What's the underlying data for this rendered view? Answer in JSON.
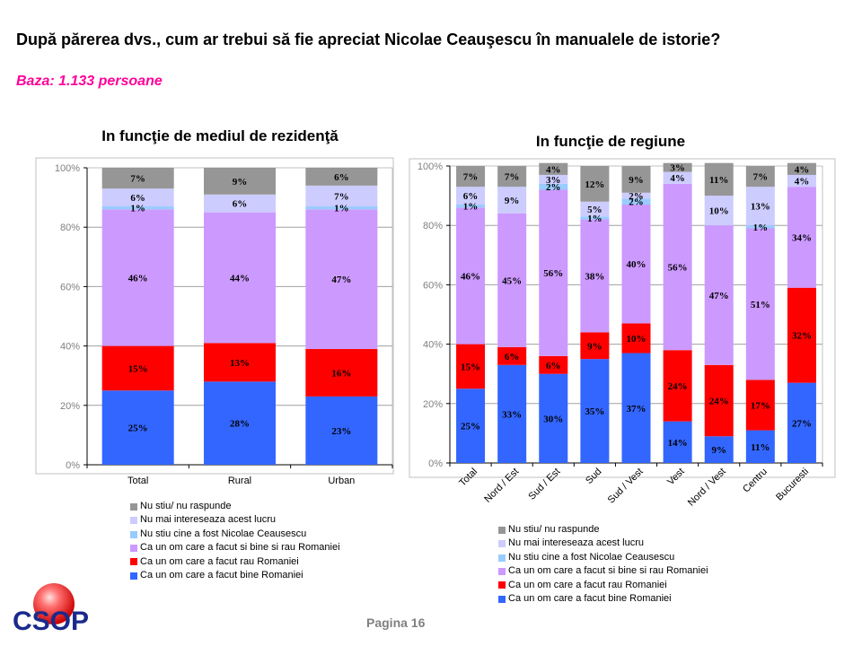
{
  "page": {
    "title": "După părerea dvs., cum ar trebui să fie apreciat Nicolae Ceauşescu în manualele de istorie?",
    "base": "Baza: 1.133 persoane",
    "page_label": "Pagina 16",
    "logo_text": "CSOP"
  },
  "legend": [
    {
      "label": "Nu stiu/ nu raspunde",
      "color": "#969696"
    },
    {
      "label": "Nu mai intereseaza acest lucru",
      "color": "#ccccff"
    },
    {
      "label": "Nu stiu cine a fost Nicolae Ceausescu",
      "color": "#99ccff"
    },
    {
      "label": "Ca un om care a facut si bine si rau Romaniei",
      "color": "#cc99ff"
    },
    {
      "label": "Ca un om care a facut rau Romaniei",
      "color": "#ff0000"
    },
    {
      "label": "Ca un om care a facut bine Romaniei",
      "color": "#3366ff"
    }
  ],
  "chart_data": [
    {
      "type": "bar",
      "stacked": true,
      "title": "In funcţie de mediul de rezidenţă",
      "xlabel": "",
      "ylabel": "",
      "ylim": [
        0,
        100
      ],
      "yticks": [
        "0%",
        "20%",
        "40%",
        "60%",
        "80%",
        "100%"
      ],
      "grid": true,
      "legend_position": "bottom",
      "categories": [
        "Total",
        "Rural",
        "Urban"
      ],
      "series": [
        {
          "name": "Ca un om care a facut bine Romaniei",
          "color": "#3366ff",
          "values": [
            25,
            28,
            23
          ]
        },
        {
          "name": "Ca un om care a facut rau Romaniei",
          "color": "#ff0000",
          "values": [
            15,
            13,
            16
          ]
        },
        {
          "name": "Ca un om care a facut si bine si rau Romaniei",
          "color": "#cc99ff",
          "values": [
            46,
            44,
            47
          ]
        },
        {
          "name": "Nu stiu cine a fost Nicolae Ceausescu",
          "color": "#99ccff",
          "values": [
            1,
            0,
            1
          ]
        },
        {
          "name": "Nu mai intereseaza acest lucru",
          "color": "#ccccff",
          "values": [
            6,
            6,
            7
          ]
        },
        {
          "name": "Nu stiu/ nu raspunde",
          "color": "#969696",
          "values": [
            7,
            9,
            6
          ]
        }
      ]
    },
    {
      "type": "bar",
      "stacked": true,
      "title": "In funcţie de regiune",
      "xlabel": "",
      "ylabel": "",
      "ylim": [
        0,
        100
      ],
      "yticks": [
        "0%",
        "20%",
        "40%",
        "60%",
        "80%",
        "100%"
      ],
      "grid": true,
      "legend_position": "bottom",
      "categories": [
        "Total",
        "Nord / Est",
        "Sud / Est",
        "Sud",
        "Sud / Vest",
        "Vest",
        "Nord / Vest",
        "Centru",
        "Bucuresti"
      ],
      "series": [
        {
          "name": "Ca un om care a facut bine Romaniei",
          "color": "#3366ff",
          "values": [
            25,
            33,
            30,
            35,
            37,
            14,
            9,
            11,
            27
          ]
        },
        {
          "name": "Ca un om care a facut rau Romaniei",
          "color": "#ff0000",
          "values": [
            15,
            6,
            6,
            9,
            10,
            24,
            24,
            17,
            32
          ]
        },
        {
          "name": "Ca un om care a facut si bine si rau Romaniei",
          "color": "#cc99ff",
          "values": [
            46,
            45,
            56,
            38,
            40,
            56,
            47,
            51,
            34
          ]
        },
        {
          "name": "Nu stiu cine a fost Nicolae Ceausescu",
          "color": "#99ccff",
          "values": [
            1,
            0,
            2,
            1,
            2,
            0,
            0,
            1,
            0
          ]
        },
        {
          "name": "Nu mai intereseaza acest lucru",
          "color": "#ccccff",
          "values": [
            6,
            9,
            3,
            5,
            2,
            4,
            10,
            13,
            4
          ]
        },
        {
          "name": "Nu stiu/ nu raspunde",
          "color": "#969696",
          "values": [
            7,
            7,
            4,
            12,
            9,
            3,
            11,
            7,
            4
          ]
        }
      ]
    }
  ]
}
